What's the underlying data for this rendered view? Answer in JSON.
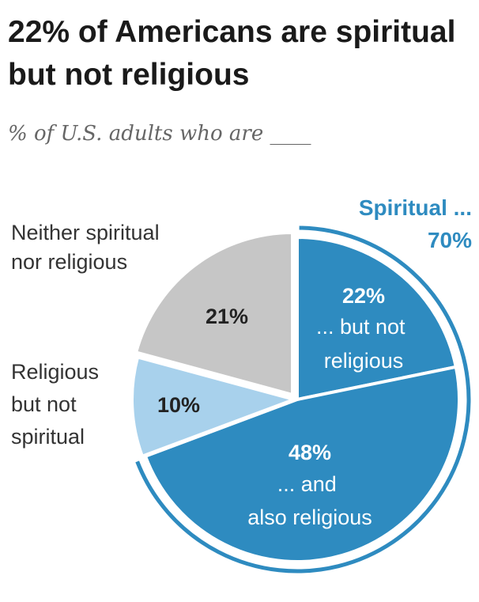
{
  "title": "22% of Americans are spiritual but not religious",
  "subtitle": "% of U.S. adults who are ____",
  "colors": {
    "accent": "#2e8bc0",
    "spiritual_not_religious": "#2e8bc0",
    "spiritual_and_religious": "#2e8bc0",
    "religious_not_spiritual": "#a8d1ec",
    "neither": "#c6c6c6",
    "dark_text": "#222222",
    "light_text": "#ffffff"
  },
  "chart_data": {
    "type": "pie",
    "slices": [
      {
        "label": "... but not religious",
        "value": 22
      },
      {
        "label": "... and also religious",
        "value": 48
      },
      {
        "label": "Religious but not spiritual",
        "value": 10
      },
      {
        "label": "Neither spiritual nor religious",
        "value": 21
      }
    ],
    "value_labels": [
      "22%",
      "48%",
      "10%",
      "21%"
    ],
    "group": {
      "label": "Spiritual ...",
      "value_label": "70%"
    }
  }
}
